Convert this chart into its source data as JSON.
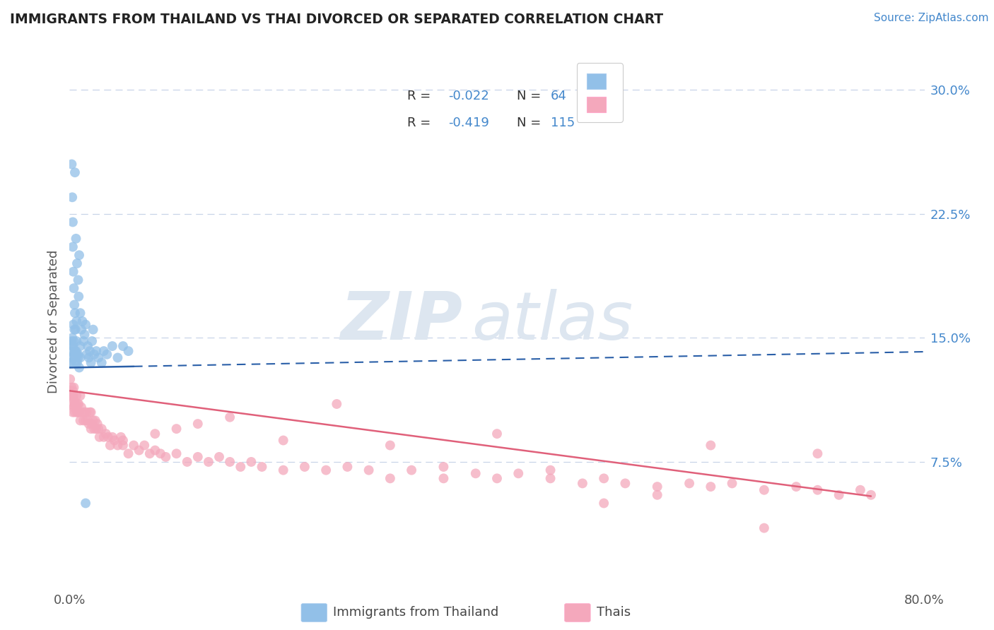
{
  "title": "IMMIGRANTS FROM THAILAND VS THAI DIVORCED OR SEPARATED CORRELATION CHART",
  "source_text": "Source: ZipAtlas.com",
  "xlabel_blue": "Immigrants from Thailand",
  "xlabel_pink": "Thais",
  "ylabel": "Divorced or Separated",
  "xlim": [
    0.0,
    80.0
  ],
  "ylim": [
    0.0,
    32.0
  ],
  "y_ticks": [
    7.5,
    15.0,
    22.5,
    30.0
  ],
  "y_tick_labels": [
    "7.5%",
    "15.0%",
    "22.5%",
    "30.0%"
  ],
  "blue_color": "#92c0e8",
  "pink_color": "#f4a8bc",
  "blue_line_color": "#2a5fa8",
  "pink_line_color": "#e0607a",
  "bg_color": "#ffffff",
  "grid_color": "#c8d4e8",
  "title_color": "#222222",
  "axis_label_color": "#555555",
  "tick_label_color_right": "#4488cc",
  "legend_text_color": "#4488cc",
  "watermark_color": "#dde6f0",
  "blue_scatter_x": [
    0.1,
    0.15,
    0.2,
    0.2,
    0.25,
    0.3,
    0.3,
    0.3,
    0.35,
    0.4,
    0.4,
    0.45,
    0.5,
    0.5,
    0.5,
    0.55,
    0.6,
    0.6,
    0.65,
    0.7,
    0.7,
    0.8,
    0.8,
    0.85,
    0.9,
    0.9,
    1.0,
    1.0,
    1.1,
    1.2,
    1.3,
    1.4,
    1.5,
    1.6,
    1.7,
    1.8,
    1.9,
    2.0,
    2.1,
    2.2,
    2.3,
    2.5,
    2.7,
    3.0,
    3.2,
    3.5,
    4.0,
    4.5,
    5.0,
    5.5,
    0.15,
    0.2,
    0.25,
    0.3,
    0.35,
    0.4,
    0.45,
    0.5,
    0.6,
    0.65,
    0.7,
    0.8,
    1.0,
    1.5
  ],
  "blue_scatter_y": [
    13.5,
    14.2,
    25.5,
    13.8,
    23.5,
    22.0,
    20.5,
    14.5,
    19.0,
    18.0,
    14.8,
    17.0,
    25.0,
    16.5,
    14.2,
    15.5,
    21.0,
    13.5,
    16.0,
    19.5,
    14.0,
    18.5,
    13.8,
    17.5,
    20.0,
    13.2,
    16.5,
    14.5,
    15.5,
    16.0,
    14.8,
    15.2,
    15.8,
    14.0,
    14.5,
    13.8,
    14.2,
    13.5,
    14.8,
    15.5,
    14.0,
    14.2,
    13.8,
    13.5,
    14.2,
    14.0,
    14.5,
    13.8,
    14.5,
    14.2,
    13.5,
    14.8,
    15.0,
    14.5,
    15.8,
    14.0,
    15.5,
    13.8,
    14.2,
    14.8,
    13.5,
    14.0,
    13.8,
    5.0
  ],
  "pink_scatter_x": [
    0.05,
    0.1,
    0.15,
    0.2,
    0.2,
    0.25,
    0.3,
    0.3,
    0.35,
    0.4,
    0.4,
    0.45,
    0.5,
    0.5,
    0.55,
    0.6,
    0.65,
    0.7,
    0.75,
    0.8,
    0.85,
    0.9,
    1.0,
    1.0,
    1.1,
    1.2,
    1.3,
    1.4,
    1.5,
    1.6,
    1.7,
    1.8,
    1.9,
    2.0,
    2.0,
    2.1,
    2.2,
    2.3,
    2.4,
    2.5,
    2.6,
    2.7,
    2.8,
    3.0,
    3.2,
    3.4,
    3.6,
    3.8,
    4.0,
    4.2,
    4.5,
    4.8,
    5.0,
    5.5,
    6.0,
    6.5,
    7.0,
    7.5,
    8.0,
    8.5,
    9.0,
    10.0,
    11.0,
    12.0,
    13.0,
    14.0,
    15.0,
    16.0,
    17.0,
    18.0,
    20.0,
    22.0,
    24.0,
    26.0,
    28.0,
    30.0,
    32.0,
    35.0,
    38.0,
    40.0,
    42.0,
    45.0,
    48.0,
    50.0,
    52.0,
    55.0,
    58.0,
    60.0,
    62.0,
    65.0,
    68.0,
    70.0,
    72.0,
    74.0,
    75.0,
    40.0,
    50.0,
    60.0,
    25.0,
    65.0,
    70.0,
    45.0,
    55.0,
    30.0,
    35.0,
    20.0,
    10.0,
    5.0,
    8.0,
    12.0,
    15.0
  ],
  "pink_scatter_y": [
    12.5,
    11.8,
    11.5,
    12.0,
    11.0,
    11.5,
    11.8,
    10.5,
    11.5,
    12.0,
    10.8,
    11.2,
    11.0,
    10.5,
    11.0,
    10.8,
    11.5,
    10.5,
    11.0,
    10.5,
    11.0,
    10.5,
    11.5,
    10.0,
    10.8,
    10.5,
    10.0,
    10.5,
    10.0,
    10.5,
    10.0,
    9.8,
    10.5,
    9.5,
    10.5,
    9.8,
    10.0,
    9.5,
    10.0,
    9.5,
    9.8,
    9.5,
    9.0,
    9.5,
    9.0,
    9.2,
    9.0,
    8.5,
    9.0,
    8.8,
    8.5,
    9.0,
    8.5,
    8.0,
    8.5,
    8.2,
    8.5,
    8.0,
    8.2,
    8.0,
    7.8,
    8.0,
    7.5,
    7.8,
    7.5,
    7.8,
    7.5,
    7.2,
    7.5,
    7.2,
    7.0,
    7.2,
    7.0,
    7.2,
    7.0,
    6.5,
    7.0,
    6.5,
    6.8,
    6.5,
    6.8,
    6.5,
    6.2,
    6.5,
    6.2,
    6.0,
    6.2,
    6.0,
    6.2,
    5.8,
    6.0,
    5.8,
    5.5,
    5.8,
    5.5,
    9.2,
    5.0,
    8.5,
    11.0,
    3.5,
    8.0,
    7.0,
    5.5,
    8.5,
    7.2,
    8.8,
    9.5,
    8.8,
    9.2,
    9.8,
    10.2
  ]
}
